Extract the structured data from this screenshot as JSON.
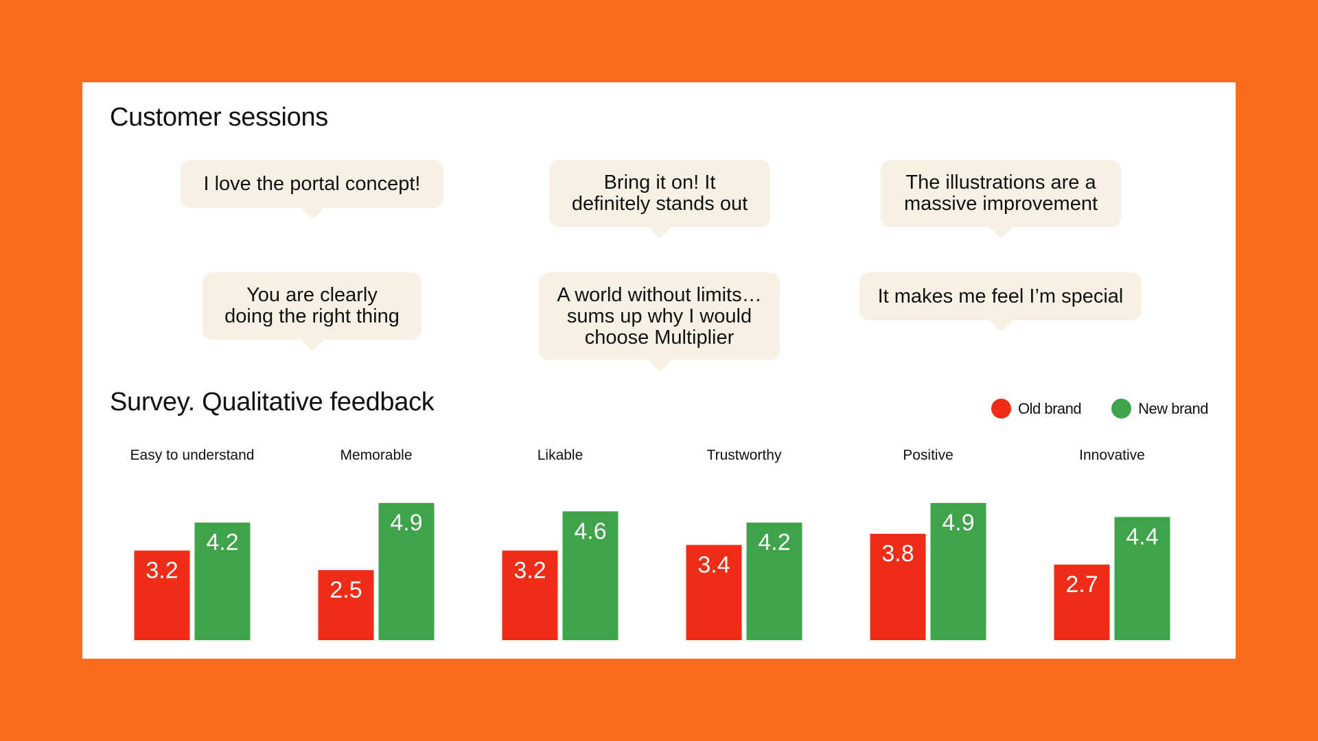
{
  "sessions": {
    "title": "Customer sessions",
    "quotes": [
      "I love the portal concept!",
      "Bring it on! It\ndefinitely stands out",
      "The illustrations are a\nmassive improvement",
      "You are clearly\ndoing the right thing",
      "A world without limits…\nsums up why I would\nchoose Multiplier",
      "It makes me feel I’m special"
    ]
  },
  "survey": {
    "title": "Survey. Qualitative feedback"
  },
  "colors": {
    "background": "#F86B1C",
    "old_brand": "#EE2C17",
    "new_brand": "#3FA34A",
    "bubble": "#F6F0E5"
  },
  "chart_data": {
    "type": "bar",
    "categories": [
      "Easy to understand",
      "Memorable",
      "Likable",
      "Trustworthy",
      "Positive",
      "Innovative"
    ],
    "series": [
      {
        "name": "Old brand",
        "color": "#EE2C17",
        "values": [
          3.2,
          2.5,
          3.2,
          3.4,
          3.8,
          2.7
        ]
      },
      {
        "name": "New brand",
        "color": "#3FA34A",
        "values": [
          4.2,
          4.9,
          4.6,
          4.2,
          4.9,
          4.4
        ]
      }
    ],
    "title": "Survey. Qualitative feedback",
    "legend": "top-right",
    "grid": false,
    "ylim": [
      0,
      5
    ]
  }
}
